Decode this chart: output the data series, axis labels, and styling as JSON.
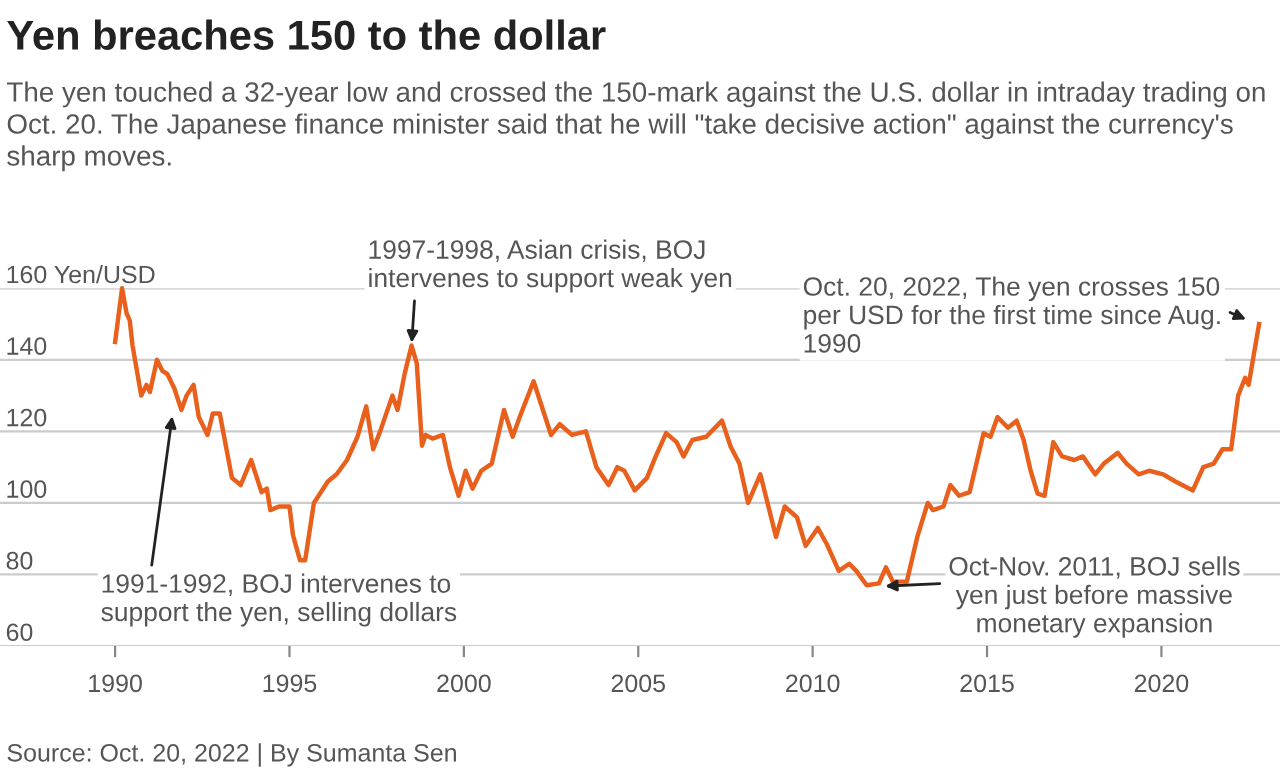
{
  "chart_data": {
    "type": "line",
    "title": "Yen breaches 150 to the dollar",
    "subtitle": "The yen touched a 32-year low and crossed the 150-mark against the U.S. dollar in intraday trading on Oct. 20. The Japanese finance minister said that he will \"take decisive action\" against the currency's sharp moves.",
    "series": [
      {
        "color": "#e8601c",
        "x": [
          1990.0,
          1990.2,
          1990.33,
          1990.42,
          1990.5,
          1990.75,
          1990.9,
          1991.0,
          1991.2,
          1991.35,
          1991.5,
          1991.7,
          1991.9,
          1992.05,
          1992.25,
          1992.4,
          1992.65,
          1992.8,
          1993.0,
          1993.35,
          1993.6,
          1993.9,
          1994.2,
          1994.35,
          1994.45,
          1994.7,
          1995.0,
          1995.1,
          1995.3,
          1995.45,
          1995.7,
          1996.1,
          1996.35,
          1996.65,
          1996.95,
          1997.2,
          1997.4,
          1997.6,
          1997.95,
          1998.1,
          1998.3,
          1998.5,
          1998.65,
          1998.8,
          1998.9,
          1999.1,
          1999.4,
          1999.6,
          1999.85,
          2000.05,
          2000.25,
          2000.5,
          2000.8,
          2001.15,
          2001.4,
          2001.6,
          2002.0,
          2002.3,
          2002.5,
          2002.75,
          2003.1,
          2003.5,
          2003.8,
          2004.15,
          2004.4,
          2004.6,
          2004.9,
          2005.25,
          2005.5,
          2005.8,
          2006.1,
          2006.3,
          2006.55,
          2006.95,
          2007.4,
          2007.65,
          2007.9,
          2008.15,
          2008.5,
          2008.95,
          2009.2,
          2009.55,
          2009.8,
          2010.15,
          2010.4,
          2010.75,
          2011.05,
          2011.25,
          2011.55,
          2011.9,
          2012.1,
          2012.3,
          2012.7,
          2013.0,
          2013.3,
          2013.45,
          2013.75,
          2013.95,
          2014.2,
          2014.5,
          2014.9,
          2015.1,
          2015.3,
          2015.6,
          2015.85,
          2016.05,
          2016.25,
          2016.45,
          2016.65,
          2016.9,
          2017.15,
          2017.5,
          2017.75,
          2018.1,
          2018.35,
          2018.75,
          2019.0,
          2019.35,
          2019.65,
          2020.05,
          2020.4,
          2020.9,
          2021.2,
          2021.5,
          2021.75,
          2022.0,
          2022.2,
          2022.4,
          2022.5,
          2022.8
        ],
        "values": [
          145,
          160,
          153,
          151,
          144,
          130,
          133,
          131,
          140,
          137,
          136,
          132,
          126,
          130,
          133,
          124,
          119,
          125,
          125,
          107,
          105,
          112,
          103,
          104,
          98,
          99,
          99,
          91,
          84,
          84,
          100,
          106,
          108,
          112,
          118.5,
          127,
          115,
          120,
          130,
          126,
          136,
          144,
          139,
          116,
          119,
          118,
          119,
          110,
          102,
          109,
          104,
          109,
          111,
          126,
          118.5,
          124,
          134,
          125,
          119,
          122,
          119,
          120,
          110,
          105,
          110,
          109,
          103.5,
          107,
          113,
          119.5,
          117,
          113,
          117.6,
          118.5,
          123,
          115.7,
          111,
          100,
          108,
          90.5,
          99,
          96,
          88,
          93,
          88.6,
          81,
          83,
          81,
          77,
          77.5,
          82,
          78,
          78,
          90.5,
          100,
          98,
          99,
          105,
          102,
          103,
          119.5,
          118.5,
          124,
          121,
          123,
          117.6,
          109,
          102.6,
          102,
          117,
          113,
          112,
          113,
          108,
          111,
          114,
          111,
          108,
          109,
          108,
          106,
          103.5,
          110,
          111,
          115,
          115,
          130,
          135,
          133,
          150
        ]
      }
    ],
    "xlim": [
      1986.7,
      2023.4
    ],
    "xticks": [
      1990,
      1995,
      2000,
      2005,
      2010,
      2015,
      2020
    ],
    "ylim": [
      60,
      160
    ],
    "yticks": [
      60,
      80,
      100,
      120,
      140,
      {
        "value": 160,
        "label": "160 Yen/USD"
      }
    ],
    "grid": "y",
    "annotations": [
      {
        "text": "1991-1992, BOJ intervenes to\nsupport the yen, selling dollars",
        "x": 1991.65,
        "y": 125
      },
      {
        "text": "1997-1998, Asian crisis, BOJ\nintervenes to support weak yen",
        "x": 1998.5,
        "y": 144
      },
      {
        "text": "Oct. 20, 2022, The yen crosses 150\nper USD for the first time since Aug.\n1990",
        "x": 2022.5,
        "y": 151
      },
      {
        "text": "Oct-Nov. 2011, BOJ sells\nyen just before massive\nmonetary expansion",
        "x": 2012.0,
        "y": 76.7
      },
      "Source: Oct. 20, 2022 | By Sumanta Sen"
    ]
  }
}
